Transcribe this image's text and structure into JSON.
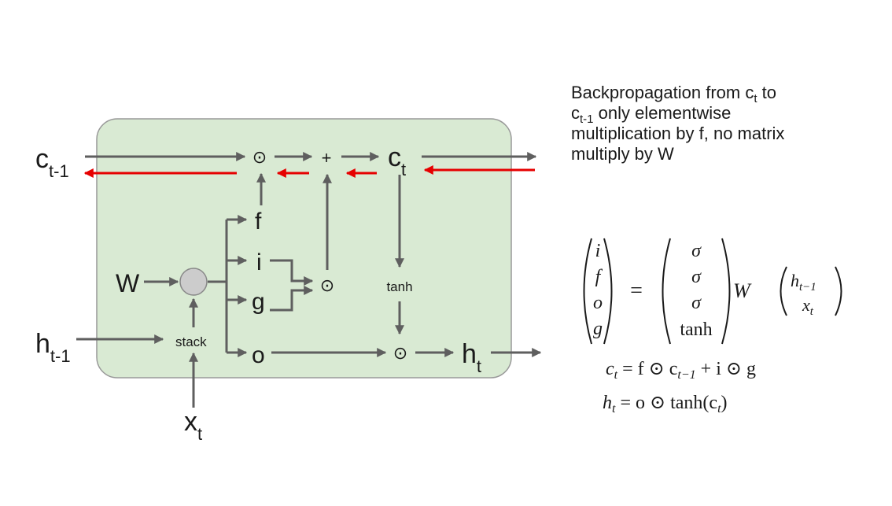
{
  "diagram": {
    "labels": {
      "c_prev": "c",
      "c_prev_sub": "t-1",
      "h_prev": "h",
      "h_prev_sub": "t-1",
      "x": "x",
      "x_sub": "t",
      "w": "W",
      "stack": "stack",
      "f": "f",
      "i": "i",
      "g": "g",
      "o": "o",
      "tanh": "tanh",
      "plus": "+",
      "odot": "⊙",
      "c": "c",
      "c_sub": "t",
      "h": "h",
      "h_sub": "t"
    },
    "colors": {
      "cell_fill": "#d9ead3",
      "cell_border": "#999999",
      "forward_arrow": "#5f5f5f",
      "backprop_arrow": "#e60000",
      "node_fill": "#cccccc"
    }
  },
  "explanation": {
    "l1": "Backpropagation from c",
    "l1_sub": "t",
    "l1_end": " to",
    "l2": "c",
    "l2_sub": "t-1",
    "l2_end": " only elementwise",
    "l3": "multiplication by f, no matrix",
    "l4": "multiply by W"
  },
  "equations": {
    "gates": [
      "i",
      "f",
      "o",
      "g"
    ],
    "equals": "=",
    "activations": [
      "σ",
      "σ",
      "σ",
      "tanh"
    ],
    "weight": "W",
    "inputs": [
      "h",
      "x"
    ],
    "input_subs": [
      "t−1",
      "t"
    ],
    "cell_eq": {
      "lhs": "c",
      "lhs_sub": "t",
      "rhs1": "= f ⊙ c",
      "rhs1_sub": "t−1",
      "rhs2": " + i ⊙ g"
    },
    "hidden_eq": {
      "lhs": "h",
      "lhs_sub": "t",
      "rhs1": "= o ⊙ tanh(c",
      "rhs1_sub": "t",
      "rhs2": ")"
    }
  }
}
